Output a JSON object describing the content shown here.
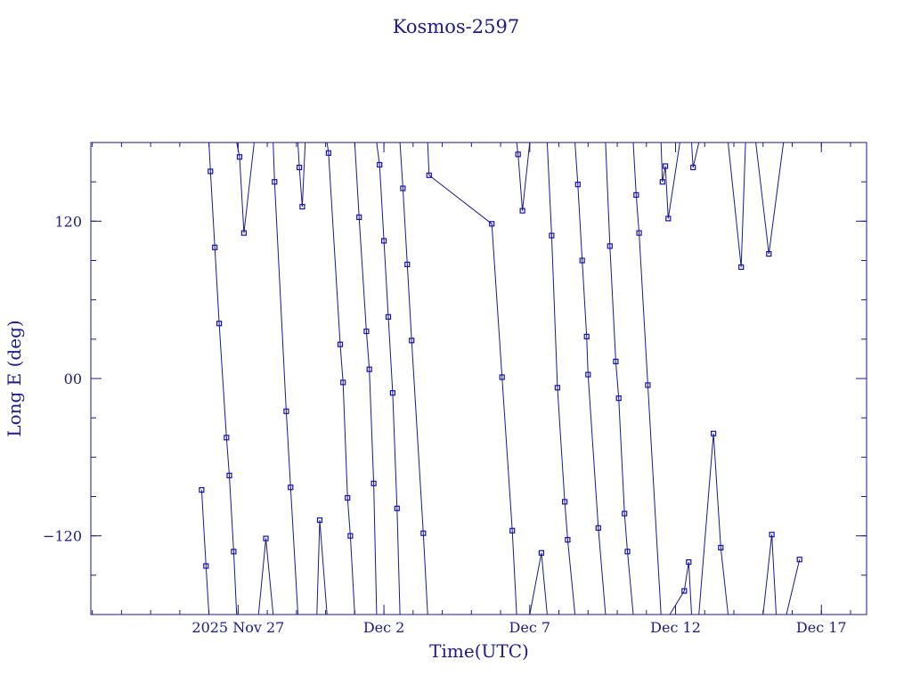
{
  "chart_data": {
    "type": "scatter",
    "title": "Kosmos-2597",
    "xlabel": "Time(UTC)",
    "ylabel": "Long E (deg)",
    "xlim": [
      -5.05,
      21.55
    ],
    "ylim": [
      -180,
      180
    ],
    "x_ticks": [
      {
        "value": 0,
        "label": "2025 Nov 27"
      },
      {
        "value": 5,
        "label": "Dec  2"
      },
      {
        "value": 10,
        "label": "Dec  7"
      },
      {
        "value": 15,
        "label": "Dec 12"
      },
      {
        "value": 20,
        "label": "Dec 17"
      }
    ],
    "y_ticks": [
      {
        "value": 120,
        "label": "120"
      },
      {
        "value": 0,
        "label": "00"
      },
      {
        "value": -120,
        "label": "−120"
      }
    ],
    "grid": false,
    "colors": {
      "axes": "#1a1a8c",
      "series": "#1010c0"
    },
    "series": [
      {
        "segments": [
          [
            [
              -1.25,
              -85
            ],
            [
              -1.1,
              -143
            ],
            [
              -1.0,
              -180
            ]
          ],
          [
            [
              -1.0,
              180
            ],
            [
              -0.95,
              158
            ],
            [
              -0.8,
              100
            ],
            [
              -0.65,
              42
            ],
            [
              -0.4,
              -45
            ],
            [
              -0.3,
              -74
            ],
            [
              -0.15,
              -132
            ],
            [
              -0.05,
              -180
            ]
          ],
          [
            [
              -0.05,
              180
            ],
            [
              0.05,
              169
            ],
            [
              0.2,
              111
            ],
            [
              0.55,
              180
            ]
          ],
          [
            [
              0.7,
              -180
            ],
            [
              0.95,
              -122
            ],
            [
              1.2,
              -180
            ]
          ],
          [
            [
              1.2,
              180
            ],
            [
              1.25,
              150
            ],
            [
              1.65,
              -25
            ],
            [
              1.8,
              -83
            ],
            [
              2.05,
              -180
            ]
          ],
          [
            [
              2.05,
              180
            ],
            [
              2.1,
              161
            ],
            [
              2.2,
              131
            ],
            [
              2.3,
              180
            ]
          ],
          [
            [
              2.7,
              -180
            ],
            [
              2.8,
              -108
            ],
            [
              3.05,
              -180
            ]
          ],
          [
            [
              3.05,
              180
            ],
            [
              3.1,
              172
            ],
            [
              3.5,
              26
            ],
            [
              3.6,
              -3
            ],
            [
              3.75,
              -91
            ],
            [
              3.85,
              -120
            ],
            [
              4.0,
              -180
            ]
          ],
          [
            [
              4.0,
              180
            ],
            [
              4.15,
              123
            ],
            [
              4.4,
              36
            ],
            [
              4.5,
              7
            ],
            [
              4.65,
              -80
            ],
            [
              4.75,
              -180
            ]
          ],
          [
            [
              4.75,
              180
            ],
            [
              4.85,
              163
            ],
            [
              5.0,
              105
            ],
            [
              5.15,
              47
            ],
            [
              5.3,
              -11
            ],
            [
              5.45,
              -99
            ],
            [
              5.55,
              -180
            ]
          ],
          [
            [
              5.55,
              180
            ],
            [
              5.65,
              145
            ],
            [
              5.8,
              87
            ],
            [
              5.95,
              29
            ],
            [
              6.35,
              -118
            ],
            [
              6.5,
              -180
            ]
          ],
          [
            [
              6.5,
              180
            ],
            [
              6.55,
              155
            ],
            [
              8.7,
              118
            ],
            [
              9.05,
              1
            ],
            [
              9.4,
              -116
            ],
            [
              9.55,
              -180
            ]
          ],
          [
            [
              9.55,
              180
            ],
            [
              9.6,
              171
            ],
            [
              9.75,
              128
            ],
            [
              10.0,
              180
            ]
          ],
          [
            [
              10.0,
              -180
            ],
            [
              10.4,
              -133
            ],
            [
              10.6,
              -180
            ]
          ],
          [
            [
              10.6,
              180
            ],
            [
              10.75,
              109
            ],
            [
              10.95,
              -7
            ],
            [
              11.2,
              -94
            ],
            [
              11.3,
              -123
            ],
            [
              11.55,
              -180
            ]
          ],
          [
            [
              11.55,
              180
            ],
            [
              11.65,
              148
            ],
            [
              11.8,
              90
            ],
            [
              11.95,
              32
            ],
            [
              12.0,
              3
            ],
            [
              12.35,
              -114
            ],
            [
              12.6,
              -180
            ]
          ],
          [
            [
              12.6,
              180
            ],
            [
              12.75,
              101
            ],
            [
              12.95,
              13
            ],
            [
              13.05,
              -15
            ],
            [
              13.25,
              -103
            ],
            [
              13.35,
              -132
            ],
            [
              13.55,
              -180
            ]
          ],
          [
            [
              13.55,
              180
            ],
            [
              13.65,
              140
            ],
            [
              13.75,
              111
            ],
            [
              14.05,
              -5
            ],
            [
              14.5,
              -180
            ]
          ],
          [
            [
              14.5,
              180
            ],
            [
              14.55,
              150
            ],
            [
              14.65,
              162
            ],
            [
              14.75,
              122
            ],
            [
              15.15,
              180
            ]
          ],
          [
            [
              14.8,
              -180
            ],
            [
              15.3,
              -162
            ],
            [
              15.45,
              -140
            ],
            [
              15.55,
              -180
            ]
          ],
          [
            [
              15.55,
              180
            ],
            [
              15.6,
              161
            ],
            [
              15.8,
              180
            ]
          ],
          [
            [
              15.8,
              -180
            ],
            [
              16.3,
              -42
            ],
            [
              16.55,
              -129
            ],
            [
              16.8,
              -180
            ]
          ],
          [
            [
              16.8,
              180
            ],
            [
              17.25,
              85
            ],
            [
              17.4,
              180
            ]
          ],
          [
            [
              17.75,
              180
            ],
            [
              18.2,
              95
            ],
            [
              18.7,
              180
            ]
          ],
          [
            [
              18.0,
              -180
            ],
            [
              18.3,
              -119
            ],
            [
              18.45,
              -180
            ]
          ],
          [
            [
              18.8,
              -180
            ],
            [
              19.25,
              -138
            ]
          ]
        ]
      }
    ]
  }
}
